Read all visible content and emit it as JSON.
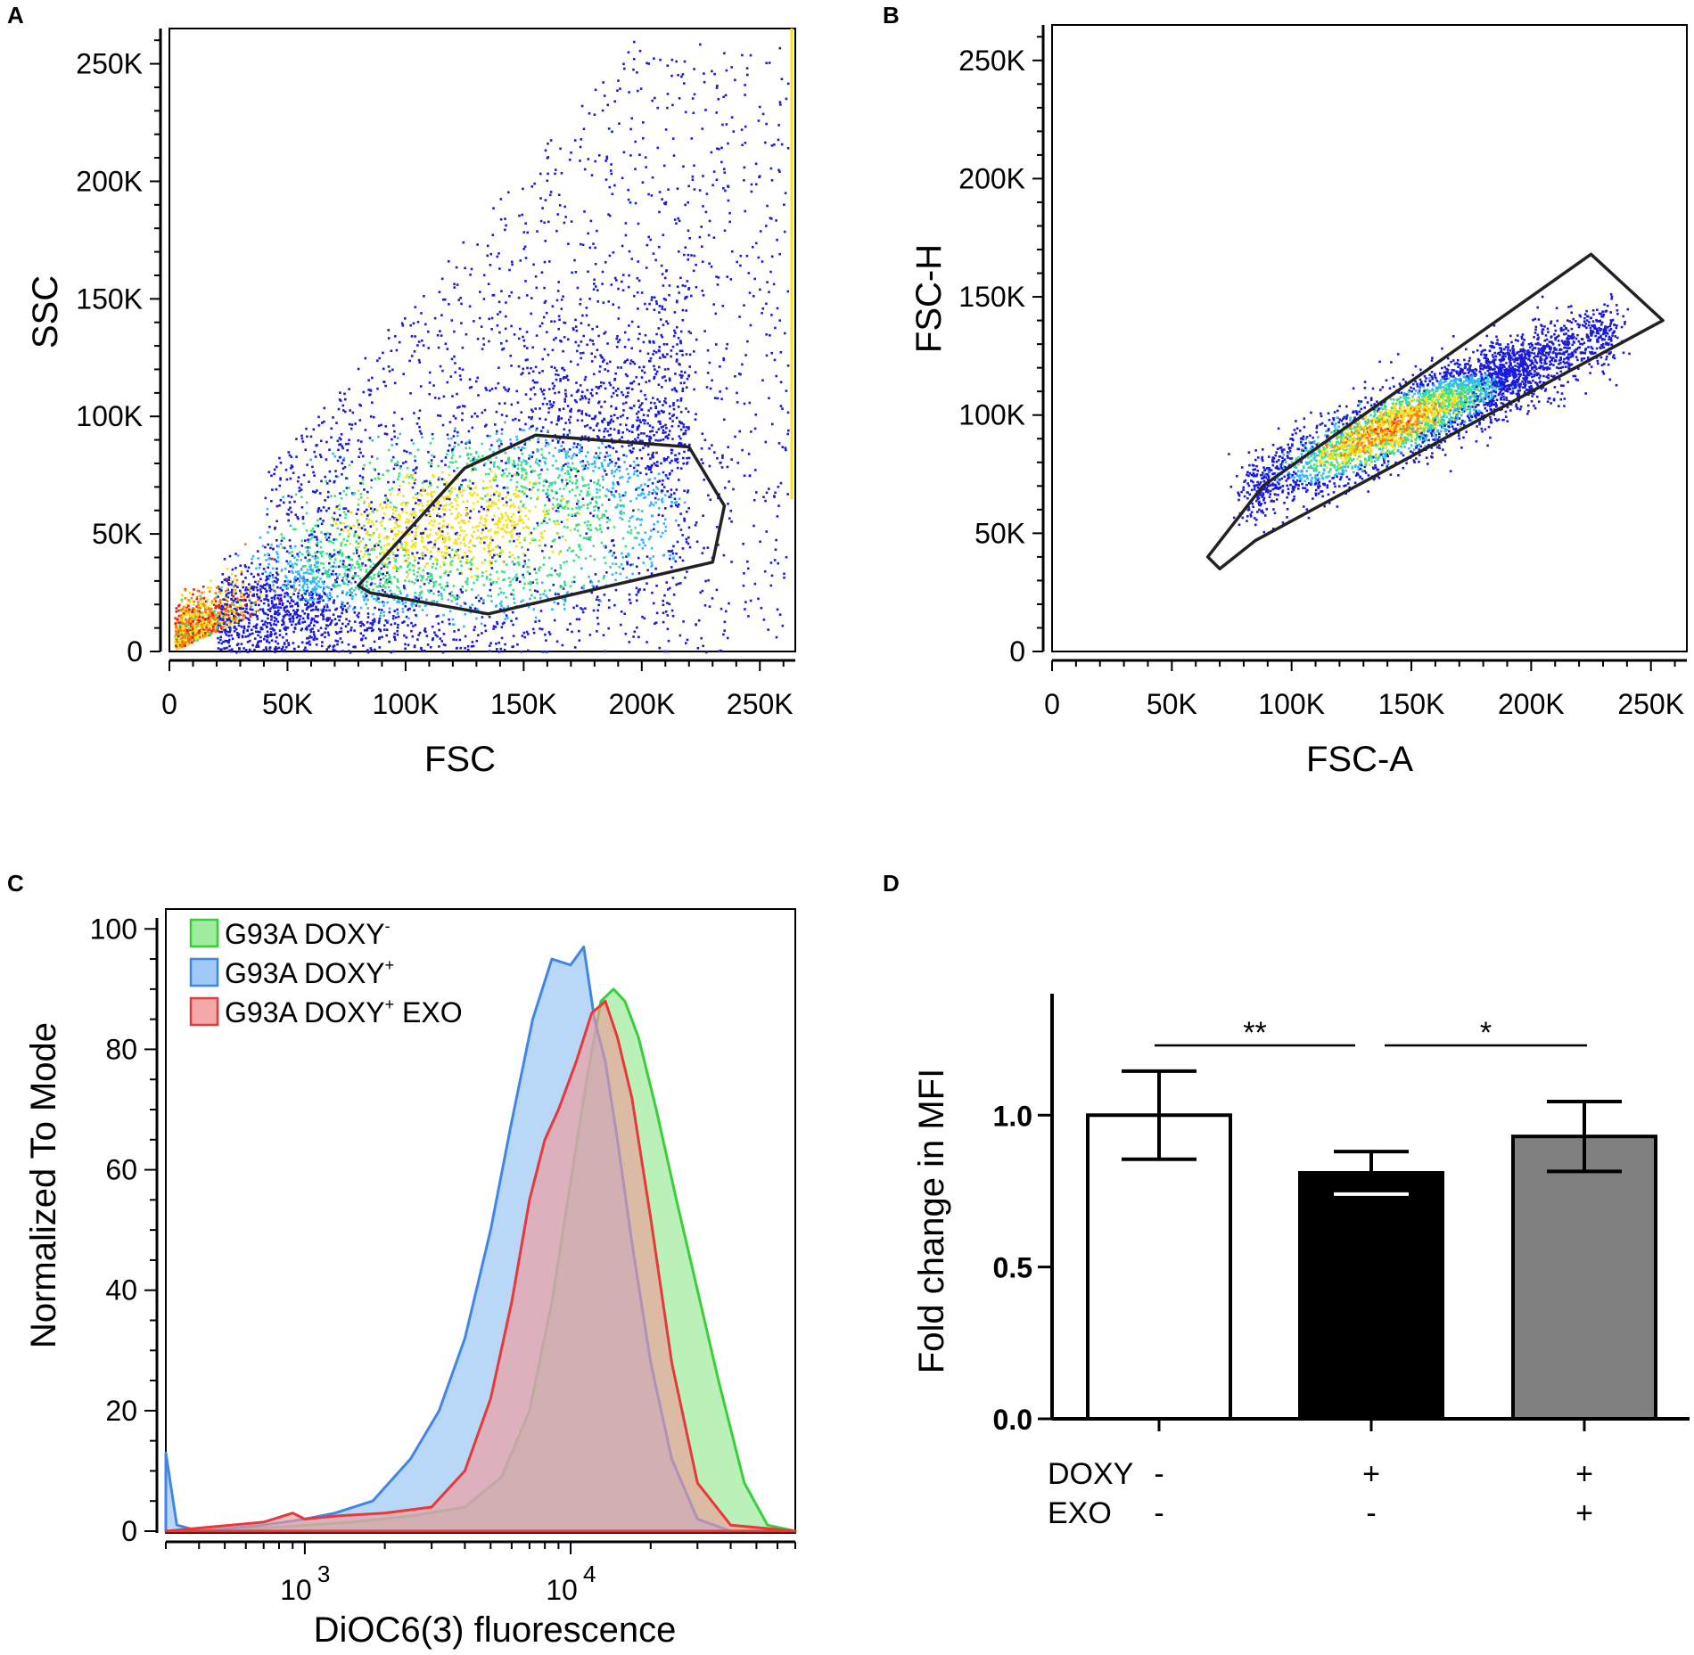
{
  "figure": {
    "panel_labels": [
      "A",
      "B",
      "C",
      "D"
    ]
  },
  "chart_data": [
    {
      "panel": "A",
      "type": "scatter",
      "subtype": "flow-cytometry-density-dot-plot",
      "xlabel": "FSC",
      "ylabel": "SSC",
      "xlim": [
        0,
        265000
      ],
      "ylim": [
        0,
        265000
      ],
      "x_ticks": [
        0,
        50000,
        100000,
        150000,
        200000,
        250000
      ],
      "x_tick_labels": [
        "0",
        "50K",
        "100K",
        "150K",
        "200K",
        "250K"
      ],
      "y_ticks": [
        0,
        50000,
        100000,
        150000,
        200000,
        250000
      ],
      "y_tick_labels": [
        "0",
        "50K",
        "100K",
        "150K",
        "200K",
        "250K"
      ],
      "density_colors": [
        "#1a1adc",
        "#33b6ff",
        "#3ee08a",
        "#f3e21c",
        "#f97a10",
        "#e41d14"
      ],
      "gate_color": "#222222",
      "gate": [
        [
          80000,
          28000
        ],
        [
          125000,
          78000
        ],
        [
          155000,
          92000
        ],
        [
          220000,
          87000
        ],
        [
          235000,
          62000
        ],
        [
          230000,
          38000
        ],
        [
          135000,
          16000
        ],
        [
          85000,
          25000
        ]
      ]
    },
    {
      "panel": "B",
      "type": "scatter",
      "subtype": "flow-cytometry-density-dot-plot",
      "xlabel": "FSC-A",
      "ylabel": "FSC-H",
      "xlim": [
        0,
        265000
      ],
      "ylim": [
        0,
        265000
      ],
      "x_ticks": [
        0,
        50000,
        100000,
        150000,
        200000,
        250000
      ],
      "x_tick_labels": [
        "0",
        "50K",
        "100K",
        "150K",
        "200K",
        "250K"
      ],
      "y_ticks": [
        0,
        50000,
        100000,
        150000,
        200000,
        250000
      ],
      "y_tick_labels": [
        "0",
        "50K",
        "100K",
        "150K",
        "200K",
        "250K"
      ],
      "density_colors": [
        "#1a1adc",
        "#33b6ff",
        "#3ee08a",
        "#f3e21c",
        "#f97a10",
        "#e41d14"
      ],
      "gate_color": "#222222",
      "gate": [
        [
          65000,
          40000
        ],
        [
          88000,
          70000
        ],
        [
          225000,
          168000
        ],
        [
          255000,
          140000
        ],
        [
          85000,
          47000
        ],
        [
          70000,
          35000
        ]
      ]
    },
    {
      "panel": "C",
      "type": "area",
      "subtype": "overlaid-histograms",
      "xlabel": "DiOC6(3) fluorescence",
      "ylabel": "Normalized To Mode",
      "x_scale": "log",
      "xlim": [
        300,
        70000
      ],
      "ylim": [
        0,
        103
      ],
      "y_ticks": [
        0,
        20,
        40,
        60,
        80,
        100
      ],
      "y_tick_labels": [
        "0",
        "20",
        "40",
        "60",
        "80",
        "100"
      ],
      "x_major_ticks": [
        1000,
        10000
      ],
      "x_tick_base": "10",
      "x_tick_exponents": [
        "3",
        "4"
      ],
      "legend_position": "top-left",
      "series": [
        {
          "name": "G93A DOXY⁻",
          "label_base": "G93A DOXY",
          "label_sup": "-",
          "label_suffix": "",
          "color": "#39cf39",
          "fill": "#8ee88e",
          "x": [
            300,
            700,
            1500,
            2500,
            4000,
            5500,
            7000,
            8500,
            10000,
            11500,
            13000,
            14500,
            16000,
            18000,
            21000,
            25000,
            30000,
            36000,
            45000,
            55000,
            70000
          ],
          "y": [
            0,
            0.5,
            1.5,
            2.5,
            4,
            9,
            20,
            38,
            58,
            75,
            88,
            90,
            88,
            82,
            70,
            55,
            40,
            25,
            8,
            1,
            0
          ]
        },
        {
          "name": "G93A DOXY⁺",
          "label_base": "G93A DOXY",
          "label_sup": "+",
          "label_suffix": "",
          "color": "#3f86e8",
          "fill": "#8ec0f4",
          "x": [
            300,
            330,
            400,
            700,
            1000,
            1300,
            1800,
            2500,
            3200,
            4000,
            5000,
            6000,
            7200,
            8500,
            10000,
            11200,
            12300,
            13500,
            15000,
            17000,
            20000,
            24000,
            30000,
            40000,
            70000
          ],
          "y": [
            13,
            1,
            0,
            1,
            2,
            3,
            5,
            12,
            20,
            32,
            50,
            68,
            85,
            95,
            94,
            97,
            85,
            78,
            65,
            48,
            28,
            12,
            2,
            0,
            0
          ]
        },
        {
          "name": "G93A DOXY⁺ EXO",
          "label_base": "G93A DOXY",
          "label_sup": "+",
          "label_suffix": " EXO",
          "color": "#e8383a",
          "fill": "#f29a9a",
          "x": [
            300,
            700,
            900,
            1000,
            1300,
            2000,
            3000,
            4000,
            5000,
            6000,
            7000,
            8000,
            9000,
            10500,
            12000,
            13500,
            15000,
            17000,
            20000,
            24000,
            30000,
            40000,
            70000
          ],
          "y": [
            0,
            1.5,
            3,
            2,
            2.5,
            3,
            4,
            10,
            22,
            38,
            55,
            65,
            70,
            78,
            86,
            88,
            82,
            72,
            52,
            28,
            8,
            1,
            0
          ]
        }
      ]
    },
    {
      "panel": "D",
      "type": "bar",
      "ylabel": "Fold change in MFI",
      "ylim": [
        0,
        1.4
      ],
      "y_ticks": [
        0.0,
        0.5,
        1.0
      ],
      "y_tick_labels": [
        "0.0",
        "0.5",
        "1.0"
      ],
      "categories": [
        "DOXY- EXO-",
        "DOXY+ EXO-",
        "DOXY+ EXO+"
      ],
      "values": [
        1.0,
        0.81,
        0.93
      ],
      "errors": [
        0.145,
        0.07,
        0.115
      ],
      "bar_colors": [
        "#ffffff",
        "#000000",
        "#808080"
      ],
      "condition_rows": [
        {
          "label": "DOXY",
          "values": [
            "-",
            "+",
            "+"
          ]
        },
        {
          "label": "EXO",
          "values": [
            "-",
            "-",
            "+"
          ]
        }
      ],
      "significance": [
        {
          "from": 0,
          "to": 1,
          "label": "**"
        },
        {
          "from": 1,
          "to": 2,
          "label": "*"
        }
      ]
    }
  ]
}
